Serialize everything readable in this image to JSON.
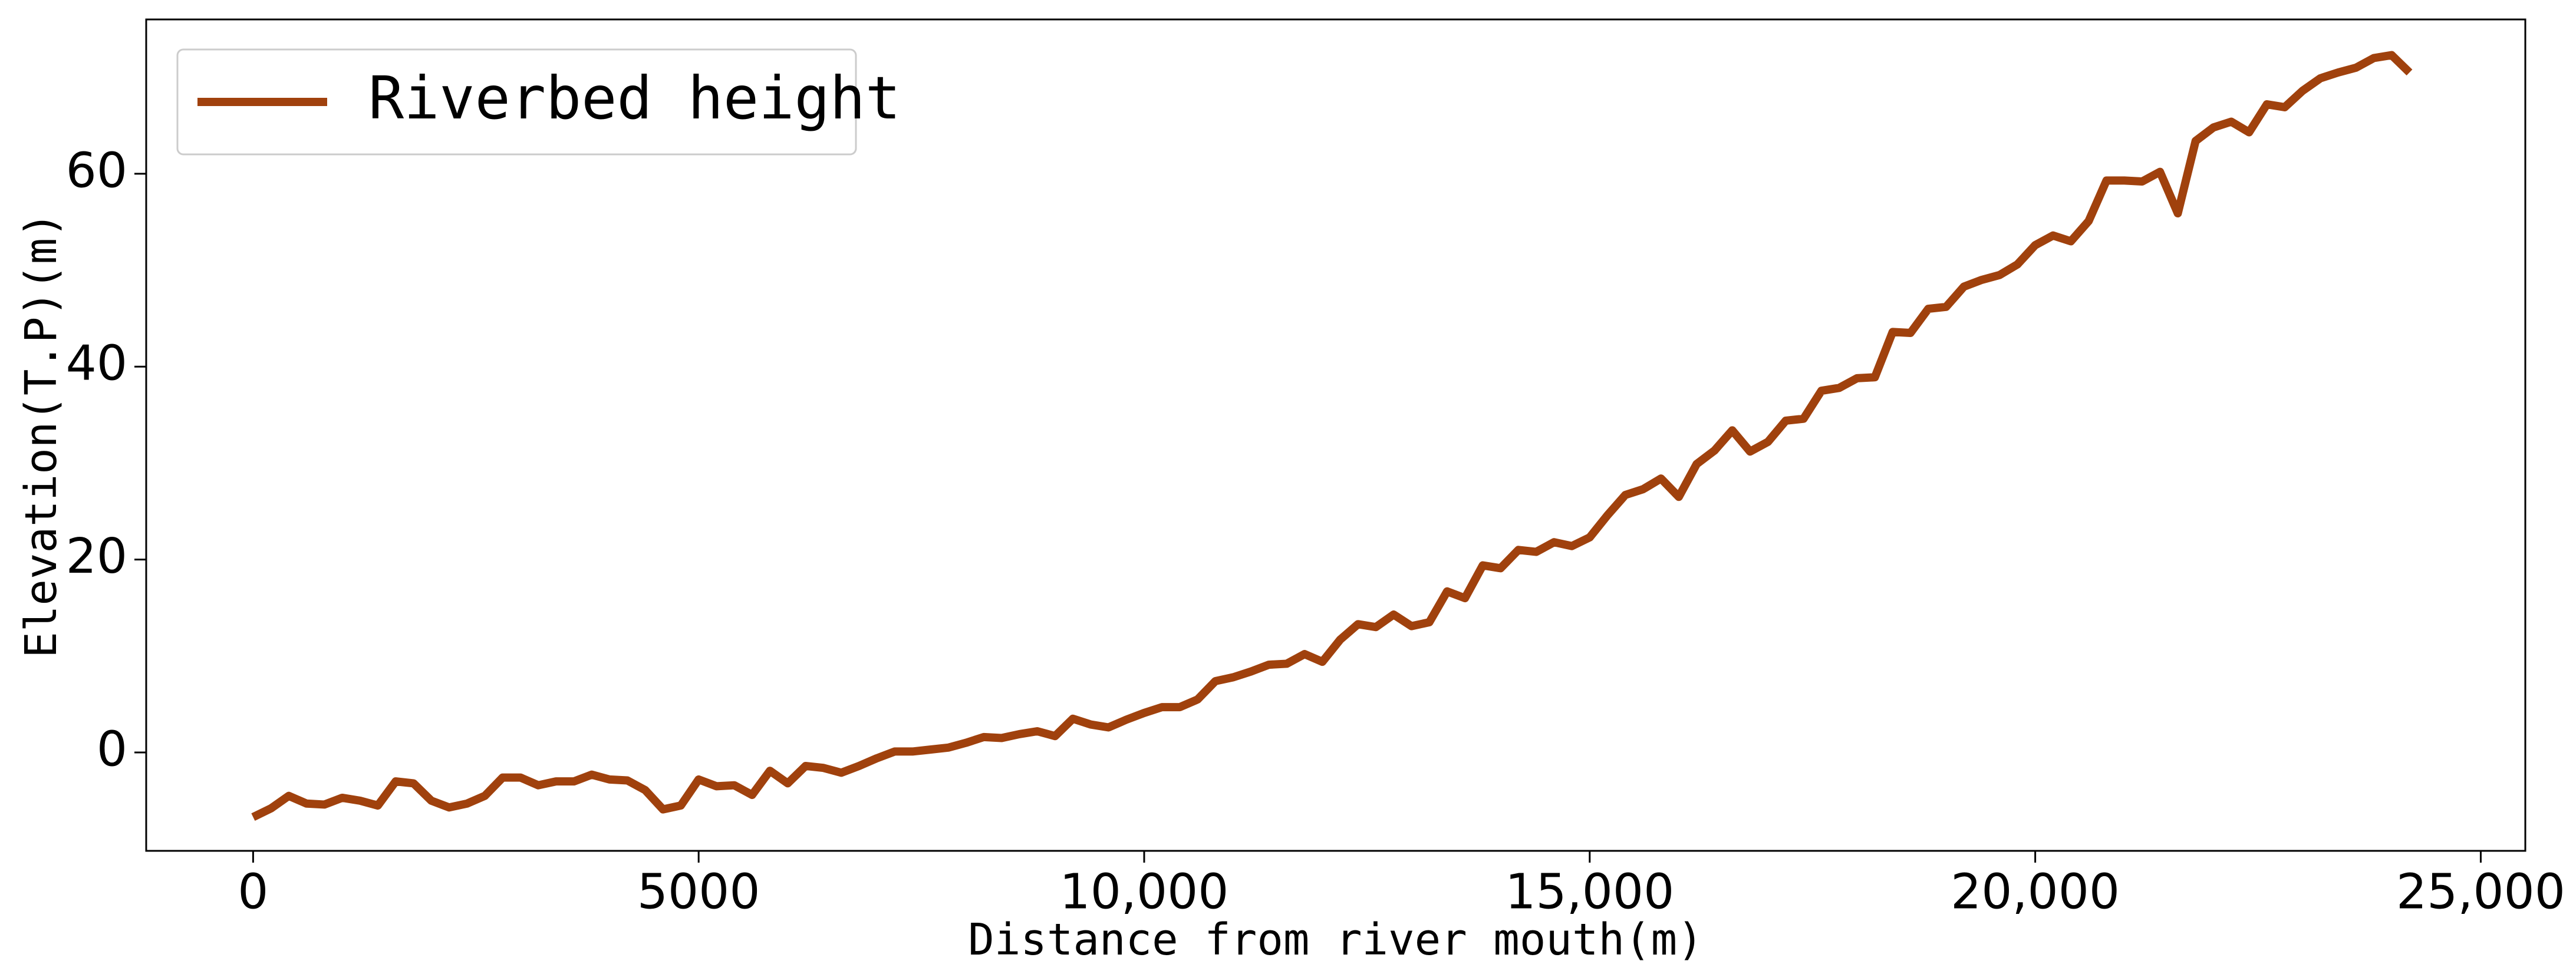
{
  "chart_data": {
    "type": "line",
    "x_label": "Distance from river mouth(m)",
    "y_label": "Elevation(T.P)(m)",
    "x": [
      0,
      200,
      400,
      600,
      800,
      1000,
      1200,
      1400,
      1600,
      1800,
      2000,
      2200,
      2400,
      2600,
      2800,
      3000,
      3200,
      3400,
      3600,
      3800,
      4000,
      4200,
      4400,
      4600,
      4800,
      5000,
      5200,
      5400,
      5600,
      5800,
      6000,
      6200,
      6400,
      6600,
      6800,
      7000,
      7200,
      7400,
      7600,
      7800,
      8000,
      8200,
      8400,
      8600,
      8800,
      9000,
      9200,
      9400,
      9600,
      9800,
      10000,
      10200,
      10400,
      10600,
      10800,
      11000,
      11200,
      11400,
      11600,
      11800,
      12000,
      12200,
      12400,
      12600,
      12800,
      13000,
      13200,
      13400,
      13600,
      13800,
      14000,
      14200,
      14400,
      14600,
      14800,
      15000,
      15200,
      15400,
      15600,
      15800,
      16000,
      16200,
      16400,
      16600,
      16800,
      17000,
      17200,
      17400,
      17600,
      17800,
      18000,
      18200,
      18400,
      18600,
      18800,
      19000,
      19200,
      19400,
      19600,
      19800,
      20000,
      20200,
      20400,
      20600,
      20800,
      21000,
      21200,
      21400,
      21600,
      21800,
      22000,
      22200,
      22400,
      22600,
      22800,
      23000,
      23200,
      23400,
      23600,
      23800,
      24000,
      24200
    ],
    "series": [
      {
        "name": "Riverbed height",
        "color": "#a0410d",
        "values": [
          -6.7,
          -5.8,
          -4.5,
          -5.3,
          -5.4,
          -4.7,
          -5.0,
          -5.5,
          -3.0,
          -3.2,
          -5.0,
          -5.7,
          -5.3,
          -4.5,
          -2.6,
          -2.6,
          -3.4,
          -3.0,
          -3.0,
          -2.3,
          -2.8,
          -2.9,
          -3.9,
          -5.9,
          -5.5,
          -2.8,
          -3.5,
          -3.4,
          -4.4,
          -1.9,
          -3.2,
          -1.4,
          -1.6,
          -2.1,
          -1.4,
          -0.6,
          0.1,
          0.1,
          0.3,
          0.5,
          1.0,
          1.6,
          1.5,
          1.9,
          2.2,
          1.7,
          3.5,
          2.9,
          2.6,
          3.4,
          4.1,
          4.7,
          4.7,
          5.5,
          7.4,
          7.8,
          8.4,
          9.1,
          9.2,
          10.2,
          9.4,
          11.7,
          13.3,
          13.0,
          14.3,
          13.1,
          13.5,
          16.7,
          16.0,
          19.4,
          19.1,
          21.0,
          20.8,
          21.8,
          21.4,
          22.3,
          24.6,
          26.7,
          27.3,
          28.4,
          26.5,
          29.9,
          31.3,
          33.4,
          31.2,
          32.2,
          34.4,
          34.6,
          37.5,
          37.8,
          38.8,
          38.9,
          43.6,
          43.5,
          46.0,
          46.2,
          48.3,
          49.0,
          49.5,
          50.6,
          52.6,
          53.6,
          53.0,
          55.1,
          59.3,
          59.3,
          59.2,
          60.2,
          55.9,
          63.4,
          64.8,
          65.4,
          64.3,
          67.2,
          66.9,
          68.6,
          69.9,
          70.5,
          71.0,
          72.0,
          72.3,
          70.5
        ]
      }
    ],
    "xlim": [
      -1200,
      25500
    ],
    "ylim": [
      -10.2,
      76
    ],
    "xticks": [
      0,
      5000,
      {
        "value": 10000,
        "label": "10,000"
      },
      {
        "value": 15000,
        "label": "15,000"
      },
      {
        "value": 20000,
        "label": "20,000"
      },
      {
        "value": 25000,
        "label": "25,000"
      }
    ],
    "yticks": [
      0,
      20,
      40,
      60
    ],
    "legend": "upper left"
  }
}
